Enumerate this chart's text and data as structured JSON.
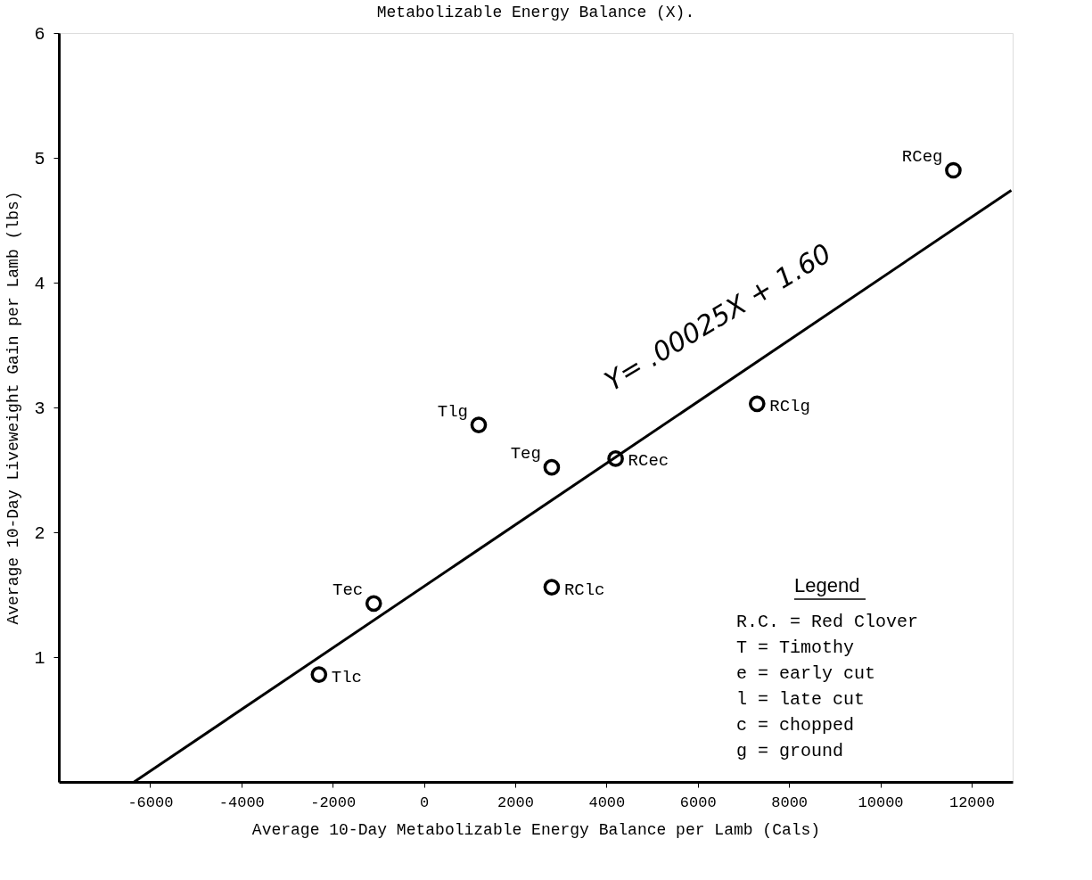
{
  "chart_data": {
    "type": "scatter",
    "title": "Metabolizable Energy Balance (X).",
    "xlabel": "Average 10-Day Metabolizable Energy Balance per Lamb (Cals)",
    "ylabel": "Average 10-Day Liveweight Gain per Lamb (lbs)",
    "xlim": [
      -8000,
      12900
    ],
    "xticks": [
      -6000,
      -4000,
      -2000,
      0,
      2000,
      4000,
      6000,
      8000,
      10000,
      12000
    ],
    "ylim": [
      0,
      6
    ],
    "yticks": [
      1,
      2,
      3,
      4,
      5,
      6
    ],
    "grid": false,
    "series": [
      {
        "marker": "circle",
        "color": "#000000",
        "x": [
          -2300,
          -1100,
          1200,
          2800,
          4200,
          2800,
          7300,
          11600
        ],
        "values": [
          0.86,
          1.43,
          2.86,
          2.52,
          2.59,
          1.56,
          3.03,
          4.9
        ]
      },
      {
        "type": "line",
        "color": "#000000",
        "x": [
          -6350,
          12870
        ],
        "values": [
          0,
          4.74
        ]
      }
    ],
    "annotations": [
      {
        "text": "Tlc",
        "x": -2300,
        "y": 0.86
      },
      {
        "text": "Tec",
        "x": -1100,
        "y": 1.43
      },
      {
        "text": "Tlg",
        "x": 1200,
        "y": 2.86
      },
      {
        "text": "Teg",
        "x": 2800,
        "y": 2.52
      },
      {
        "text": "RCec",
        "x": 4200,
        "y": 2.59
      },
      {
        "text": "RClc",
        "x": 2800,
        "y": 1.56
      },
      {
        "text": "RClg",
        "x": 7300,
        "y": 3.03
      },
      {
        "text": "RCeg",
        "x": 11600,
        "y": 4.9
      },
      "Y= .00025X + 1.60",
      "Legend",
      "R.C. = Red Clover",
      "T    = Timothy",
      "e    = early cut",
      "l    = late cut",
      "c    = chopped",
      "g    = ground"
    ]
  }
}
